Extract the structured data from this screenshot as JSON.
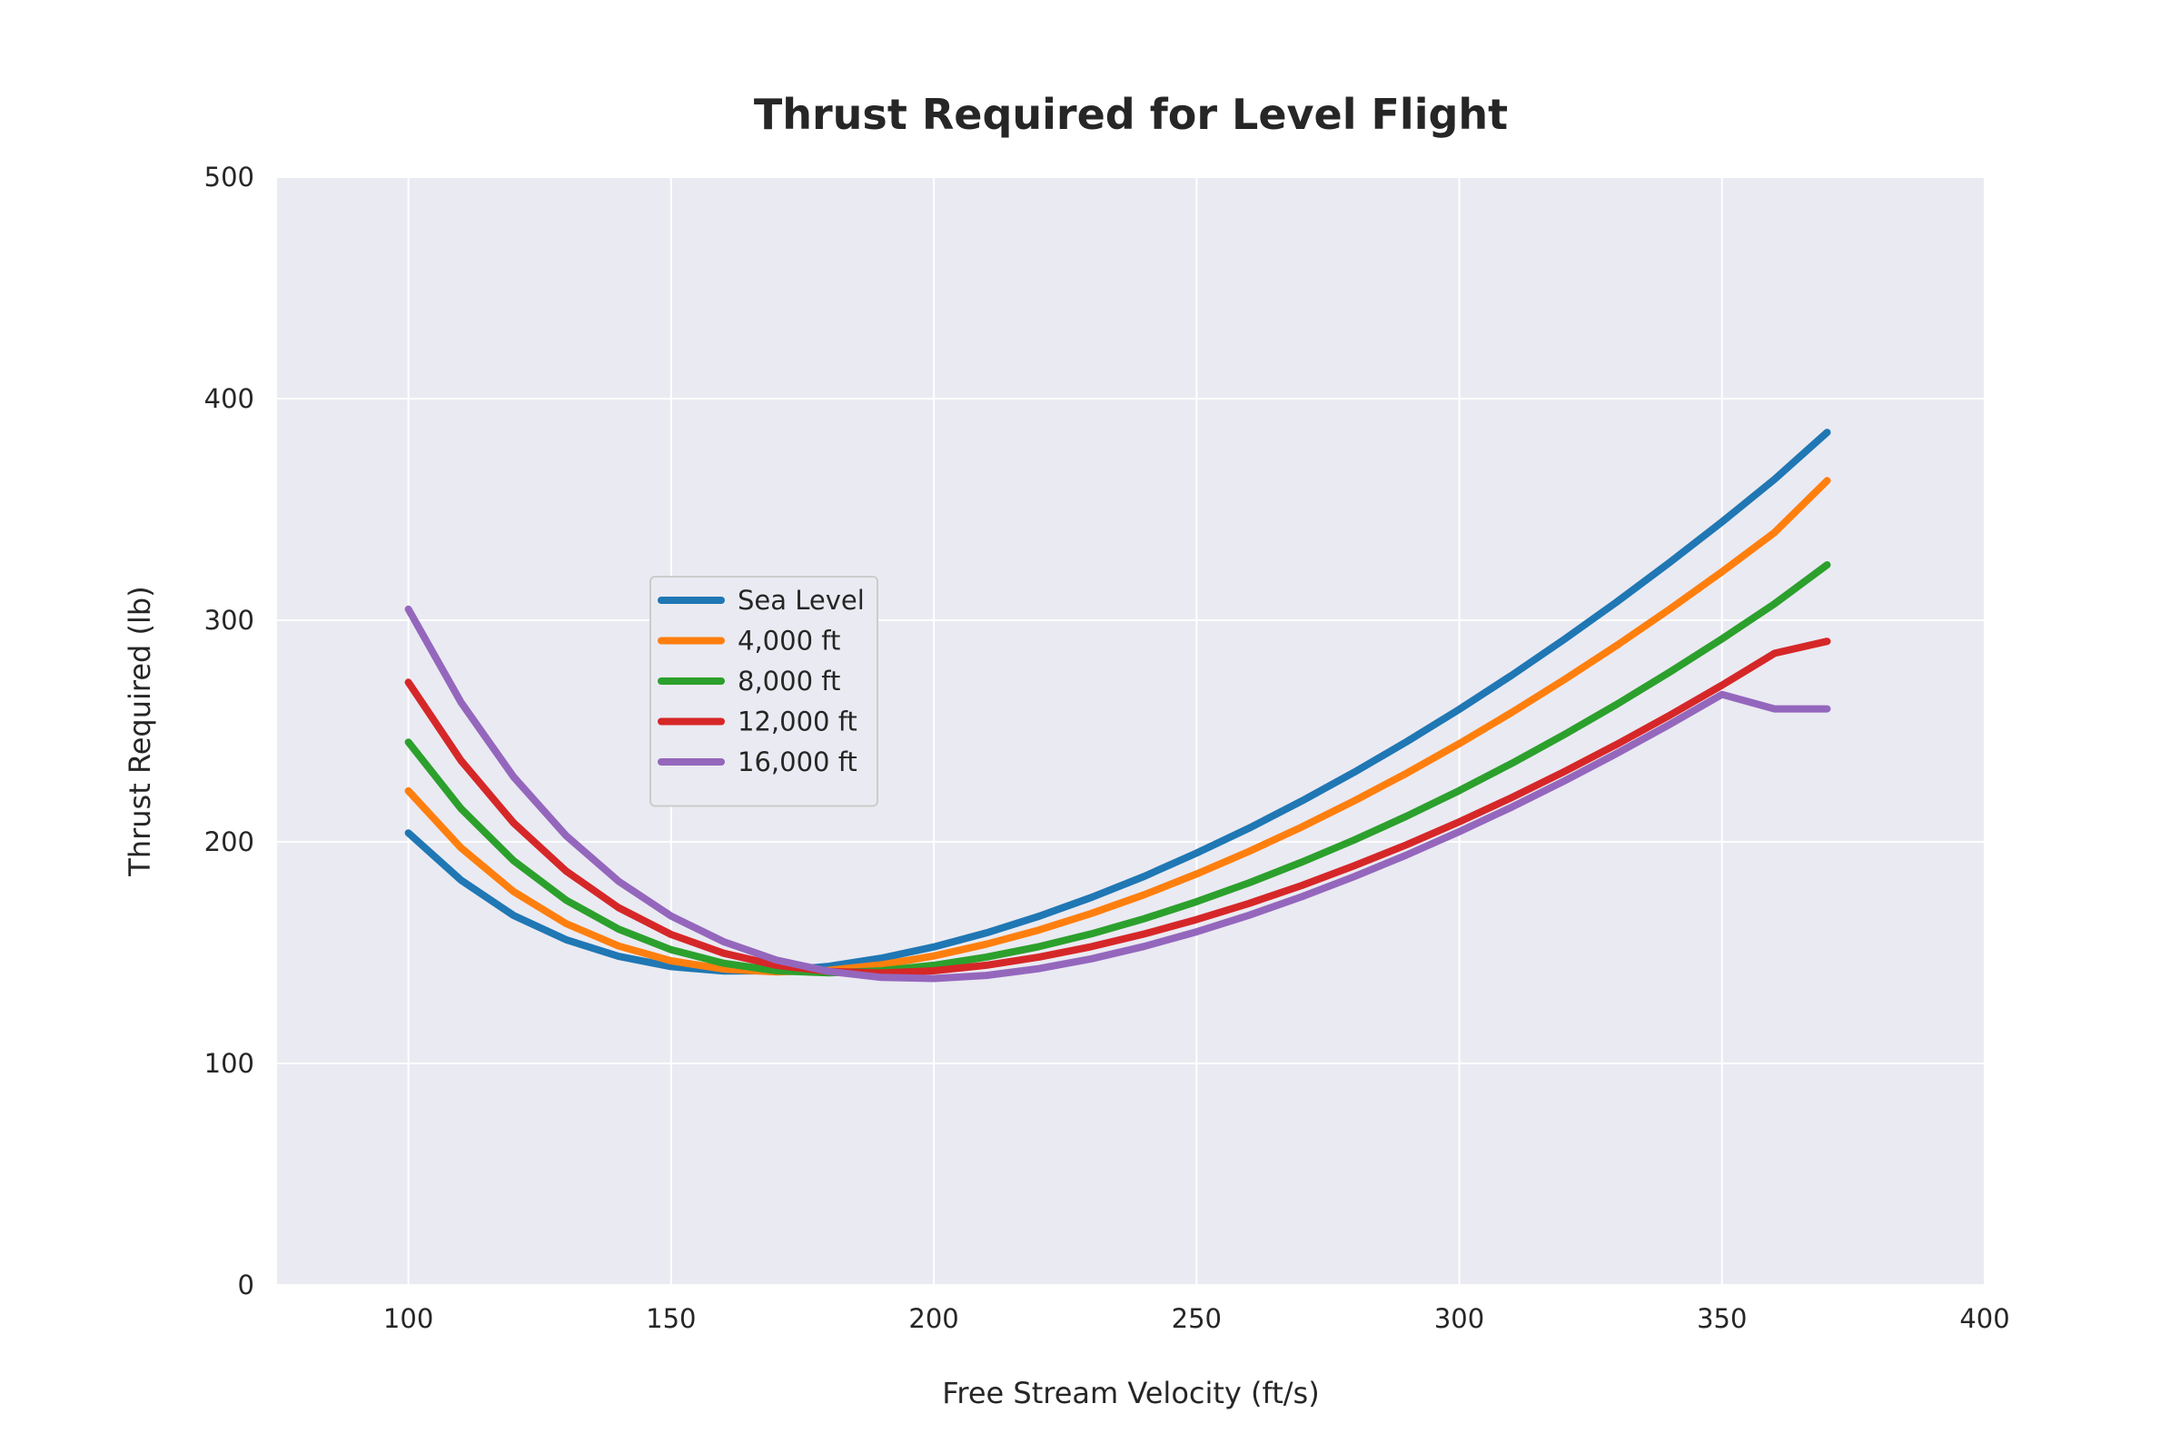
{
  "chart_data": {
    "type": "line",
    "title": "Thrust Required for Level Flight",
    "xlabel": "Free Stream Velocity (ft/s)",
    "ylabel": "Thrust Required (lb)",
    "xlim": [
      75,
      400
    ],
    "ylim": [
      0,
      500
    ],
    "xticks": [
      100,
      150,
      200,
      250,
      300,
      350,
      400
    ],
    "yticks": [
      0,
      100,
      200,
      300,
      400,
      500
    ],
    "grid": true,
    "legend_position": "center-left",
    "x": [
      100,
      110,
      120,
      130,
      140,
      150,
      160,
      170,
      180,
      190,
      200,
      210,
      220,
      230,
      240,
      250,
      260,
      270,
      280,
      290,
      300,
      310,
      320,
      330,
      340,
      350,
      360,
      370
    ],
    "series": [
      {
        "name": "Sea Level",
        "color": "#1f77b4",
        "values": [
          204,
          182.7,
          166.8,
          155.8,
          148.3,
          143.7,
          141.7,
          141.8,
          143.8,
          147.5,
          152.6,
          158.9,
          166.4,
          174.9,
          184.4,
          194.9,
          206.2,
          218.4,
          231.4,
          245.2,
          259.8,
          275.2,
          291.4,
          308.3,
          326.0,
          344.4,
          363.6,
          384.8
        ]
      },
      {
        "name": "4,000 ft",
        "color": "#ff7f0e",
        "values": [
          223,
          197.3,
          177.6,
          163.1,
          153.0,
          146.3,
          142.6,
          141.3,
          142.0,
          144.5,
          148.5,
          153.8,
          160.2,
          167.7,
          176.1,
          185.5,
          195.7,
          206.7,
          218.5,
          231.0,
          244.3,
          258.4,
          273.2,
          288.7,
          304.9,
          321.9,
          339.6,
          363.0
        ]
      },
      {
        "name": "8,000 ft",
        "color": "#2ca02c",
        "values": [
          245,
          215.0,
          191.5,
          173.7,
          160.6,
          151.3,
          145.2,
          141.8,
          140.9,
          141.8,
          144.3,
          148.0,
          152.7,
          158.5,
          165.3,
          173.0,
          181.5,
          190.8,
          200.8,
          211.6,
          223.1,
          235.4,
          248.4,
          262.1,
          276.5,
          291.6,
          307.4,
          325.0
        ]
      },
      {
        "name": "12,000 ft",
        "color": "#d62728",
        "values": [
          272,
          236.7,
          208.6,
          186.8,
          170.3,
          158.2,
          149.7,
          144.3,
          141.5,
          140.8,
          141.8,
          144.3,
          148.0,
          152.7,
          158.4,
          164.9,
          172.2,
          180.3,
          189.2,
          198.7,
          209.0,
          220.0,
          231.7,
          244.0,
          257.0,
          270.7,
          285.1,
          290.5
        ]
      },
      {
        "name": "16,000 ft",
        "color": "#9467bd",
        "values": [
          305,
          263.0,
          229.4,
          202.8,
          182.2,
          166.5,
          154.9,
          146.7,
          141.5,
          138.8,
          138.3,
          139.7,
          142.8,
          147.2,
          152.8,
          159.4,
          166.9,
          175.2,
          184.3,
          194.1,
          204.6,
          215.7,
          227.5,
          239.9,
          252.9,
          266.5,
          260.0,
          260.0
        ]
      }
    ]
  }
}
